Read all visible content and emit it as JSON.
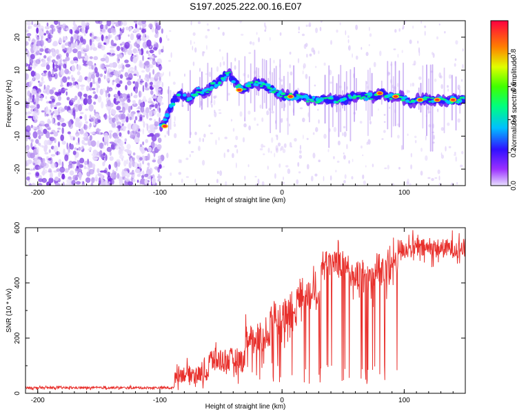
{
  "title": "S197.2025.222.00.16.E07",
  "chart_data": [
    {
      "type": "heatmap",
      "name": "spectrogram",
      "xlabel": "Height of straight line (km)",
      "ylabel": "Frequency (Hz)",
      "xlim": [
        -210,
        150
      ],
      "ylim": [
        -25,
        25
      ],
      "xticks": [
        -200,
        -100,
        0,
        100
      ],
      "yticks": [
        -20,
        -10,
        0,
        10,
        20
      ],
      "noise_region_x": [
        -210,
        -98
      ],
      "ridge": {
        "x": [
          -98,
          -93,
          -88,
          -83,
          -78,
          -73,
          -68,
          -63,
          -58,
          -53,
          -48,
          -43,
          -38,
          -33,
          -28,
          -23,
          -18,
          -13,
          -8,
          -3,
          2,
          7,
          12,
          17,
          22,
          27,
          32,
          37,
          42,
          47,
          52,
          57,
          62,
          67,
          72,
          77,
          82,
          87,
          92,
          97,
          102,
          107,
          112,
          117,
          122,
          127,
          132,
          137,
          142,
          147
        ],
        "y": [
          -7,
          -3,
          1,
          3,
          1,
          2,
          4,
          3,
          5,
          6,
          8,
          9,
          6,
          4,
          5,
          6,
          6,
          5,
          4,
          3,
          2,
          2,
          2,
          2,
          1,
          1,
          1,
          1,
          1,
          1,
          1,
          2,
          2,
          2,
          2,
          2,
          3,
          2,
          2,
          2,
          1,
          0,
          1,
          1,
          1,
          1,
          1,
          1,
          1,
          1
        ]
      },
      "colorbar": {
        "label": "Normalized spectral amplitude",
        "range": [
          0,
          1
        ],
        "ticks": [
          "0.0",
          "0.2",
          "0.4",
          "0.6",
          "0.8"
        ]
      }
    },
    {
      "type": "line",
      "name": "snr",
      "xlabel": "Height of straight line (km)",
      "ylabel": "SNR (10 * v/v)",
      "xlim": [
        -210,
        150
      ],
      "ylim": [
        0,
        600
      ],
      "xticks": [
        -200,
        -100,
        0,
        100
      ],
      "yticks": [
        0,
        200,
        400,
        600
      ],
      "color": "#e8302c",
      "segments": [
        {
          "x0": -210,
          "x1": -88,
          "base": 20,
          "amp": 8,
          "dropouts": false
        },
        {
          "x0": -88,
          "x1": -60,
          "base": 70,
          "amp": 60,
          "dropouts": false
        },
        {
          "x0": -60,
          "x1": -30,
          "base": 120,
          "amp": 90,
          "dropouts": false
        },
        {
          "x0": -30,
          "x1": -10,
          "base": 200,
          "amp": 90,
          "dropouts": true
        },
        {
          "x0": -10,
          "x1": 12,
          "base": 280,
          "amp": 120,
          "dropouts": true
        },
        {
          "x0": 12,
          "x1": 32,
          "base": 360,
          "amp": 120,
          "dropouts": true
        },
        {
          "x0": 32,
          "x1": 55,
          "base": 470,
          "amp": 90,
          "dropouts": true
        },
        {
          "x0": 55,
          "x1": 75,
          "base": 420,
          "amp": 110,
          "dropouts": true
        },
        {
          "x0": 75,
          "x1": 95,
          "base": 450,
          "amp": 120,
          "dropouts": true
        },
        {
          "x0": 95,
          "x1": 150,
          "base": 525,
          "amp": 70,
          "dropouts": false
        }
      ]
    }
  ]
}
